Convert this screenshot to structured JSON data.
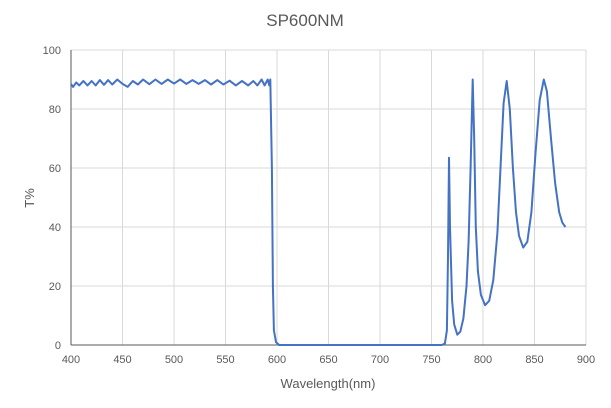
{
  "chart_data": {
    "type": "line",
    "title": "SP600NM",
    "xlabel": "Wavelength(nm)",
    "ylabel": "T%",
    "xlim": [
      400,
      900
    ],
    "ylim": [
      0,
      100
    ],
    "xticks": [
      400,
      450,
      500,
      550,
      600,
      650,
      700,
      750,
      800,
      850,
      900
    ],
    "yticks": [
      0,
      20,
      40,
      60,
      80,
      100
    ],
    "grid": true,
    "legend": "none",
    "series_color": "#4472C4",
    "x": [
      400,
      402,
      405,
      408,
      412,
      416,
      420,
      424,
      428,
      432,
      436,
      440,
      445,
      450,
      455,
      460,
      465,
      470,
      476,
      482,
      488,
      494,
      500,
      506,
      512,
      518,
      524,
      530,
      536,
      542,
      548,
      554,
      560,
      566,
      572,
      577,
      581,
      585,
      588,
      591,
      592.5,
      593.5,
      595,
      596,
      597,
      599,
      602,
      760,
      763,
      765,
      766,
      767,
      768,
      770,
      772,
      775,
      778,
      781,
      784,
      786,
      788,
      790,
      791.5,
      793,
      795,
      798,
      802,
      806,
      810,
      814,
      817,
      820,
      823,
      826,
      829,
      832,
      835,
      839,
      843,
      847,
      851,
      855,
      859,
      862,
      866,
      870,
      874,
      877,
      880
    ],
    "y": [
      88.5,
      87.5,
      89,
      88,
      89.5,
      88,
      89.5,
      88,
      89.8,
      88.2,
      89.8,
      88.3,
      90,
      88.5,
      87.5,
      89.5,
      88.3,
      90,
      88.4,
      90,
      88.5,
      90,
      88.6,
      90,
      88.5,
      89.8,
      88.5,
      89.8,
      88.3,
      89.8,
      88.3,
      89.6,
      88,
      89.5,
      88,
      89.5,
      88,
      90,
      88,
      90,
      88,
      90,
      60,
      20,
      5,
      1,
      0,
      0,
      0.5,
      5,
      30,
      63.5,
      40,
      15,
      7,
      3.5,
      4.5,
      9,
      20,
      35,
      60,
      90,
      70,
      40,
      25,
      17,
      13.5,
      15,
      22,
      38,
      60,
      82,
      89.5,
      80,
      60,
      45,
      37,
      33,
      35,
      45,
      65,
      83,
      90,
      86,
      70,
      55,
      45,
      41.5,
      40
    ]
  }
}
